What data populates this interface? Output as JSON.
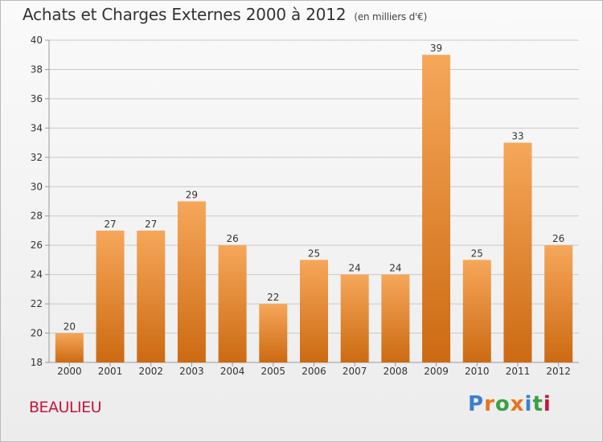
{
  "header": {
    "title": "Achats et Charges Externes 2000 à 2012",
    "subtitle": "(en milliers d'€)"
  },
  "footer": {
    "commune": "BEAULIEU",
    "logo": "Proxiti",
    "logo_colors": [
      "#3a7fd0",
      "#e8731a",
      "#3aa046",
      "#e8731a",
      "#3a7fd0",
      "#3aa046",
      "#c8143c"
    ]
  },
  "colors": {
    "bar_top": "#f6a75a",
    "bar_bottom": "#cc6a12",
    "grid": "#c8c8c8",
    "text": "#333333"
  },
  "chart_data": {
    "type": "bar",
    "title": "Achats et Charges Externes 2000 à 2012",
    "subtitle": "(en milliers d'€)",
    "categories": [
      "2000",
      "2001",
      "2002",
      "2003",
      "2004",
      "2005",
      "2006",
      "2007",
      "2008",
      "2009",
      "2010",
      "2011",
      "2012"
    ],
    "values": [
      20,
      27,
      27,
      29,
      26,
      22,
      25,
      24,
      24,
      39,
      25,
      33,
      26
    ],
    "ylim": [
      18,
      40
    ],
    "yticks": [
      18,
      20,
      22,
      24,
      26,
      28,
      30,
      32,
      34,
      36,
      38,
      40
    ],
    "grid": true,
    "xlabel": "",
    "ylabel": ""
  }
}
